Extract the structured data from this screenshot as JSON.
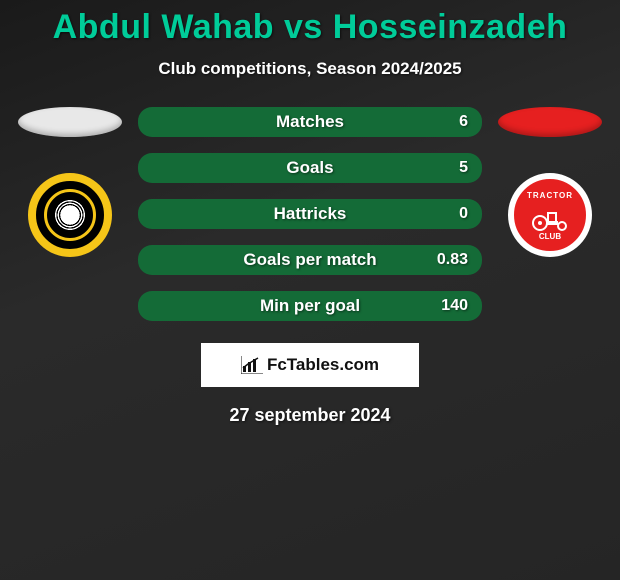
{
  "title": "Abdul Wahab vs Hosseinzadeh",
  "subtitle": "Club competitions, Season 2024/2025",
  "title_color": "#00cc99",
  "left": {
    "ellipse_color": "#e8e8e8",
    "badge_ring_color": "#f5c518",
    "badge_bg": "#000000"
  },
  "right": {
    "ellipse_color": "#e62020",
    "badge_bg": "#e62020",
    "badge_ring": "#ffffff",
    "top_text": "TRACTOR",
    "bottom_text": "CLUB"
  },
  "bars": [
    {
      "label": "Matches",
      "left_val": "",
      "right_val": "6",
      "track": "#146b37",
      "fill": "#2a9c55",
      "fill_pct": 0
    },
    {
      "label": "Goals",
      "left_val": "",
      "right_val": "5",
      "track": "#146b37",
      "fill": "#2a9c55",
      "fill_pct": 0
    },
    {
      "label": "Hattricks",
      "left_val": "",
      "right_val": "0",
      "track": "#146b37",
      "fill": "#2a9c55",
      "fill_pct": 0
    },
    {
      "label": "Goals per match",
      "left_val": "",
      "right_val": "0.83",
      "track": "#146b37",
      "fill": "#2a9c55",
      "fill_pct": 0
    },
    {
      "label": "Min per goal",
      "left_val": "",
      "right_val": "140",
      "track": "#146b37",
      "fill": "#2a9c55",
      "fill_pct": 0
    }
  ],
  "logo_text": "FcTables.com",
  "date": "27 september 2024"
}
